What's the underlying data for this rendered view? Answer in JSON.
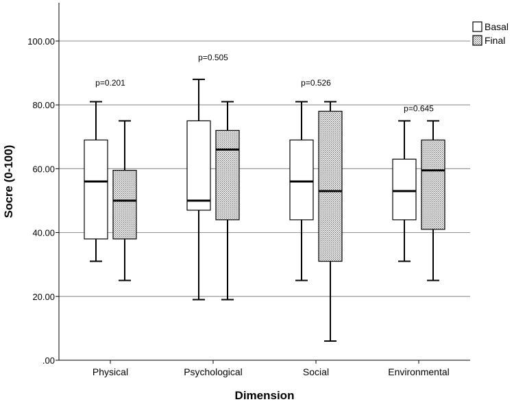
{
  "chart_data": {
    "type": "boxplot",
    "xlabel": "Dimension",
    "ylabel": "Socre (0-100)",
    "ylim": [
      0,
      112
    ],
    "yticks": [
      0,
      20,
      40,
      60,
      80,
      100
    ],
    "ytick_labels": [
      ".00",
      "20.00",
      "40.00",
      "60.00",
      "80.00",
      "100.00"
    ],
    "grid": "horizontal",
    "legend_position": "top-right",
    "categories": [
      "Physical",
      "Psychological",
      "Social",
      "Environmental"
    ],
    "series": [
      {
        "name": "Basal",
        "fill": "white",
        "boxes": [
          {
            "min": 31,
            "q1": 38,
            "median": 56,
            "q3": 69,
            "max": 81
          },
          {
            "min": 19,
            "q1": 47,
            "median": 50,
            "q3": 75,
            "max": 88
          },
          {
            "min": 25,
            "q1": 44,
            "median": 56,
            "q3": 69,
            "max": 81
          },
          {
            "min": 31,
            "q1": 44,
            "median": 53,
            "q3": 63,
            "max": 75
          }
        ]
      },
      {
        "name": "Final",
        "fill": "dotted",
        "boxes": [
          {
            "min": 25,
            "q1": 38,
            "median": 50,
            "q3": 59.5,
            "max": 75
          },
          {
            "min": 19,
            "q1": 44,
            "median": 66,
            "q3": 72,
            "max": 81
          },
          {
            "min": 6,
            "q1": 31,
            "median": 53,
            "q3": 78,
            "max": 81
          },
          {
            "min": 25,
            "q1": 41,
            "median": 59.5,
            "q3": 69,
            "max": 75
          }
        ]
      }
    ],
    "annotations": [
      {
        "text": "p=0.201",
        "category": "Physical",
        "y": 86
      },
      {
        "text": "p=0.505",
        "category": "Psychological",
        "y": 94
      },
      {
        "text": "p=0.526",
        "category": "Social",
        "y": 86
      },
      {
        "text": "p=0.645",
        "category": "Environmental",
        "y": 78
      }
    ]
  }
}
